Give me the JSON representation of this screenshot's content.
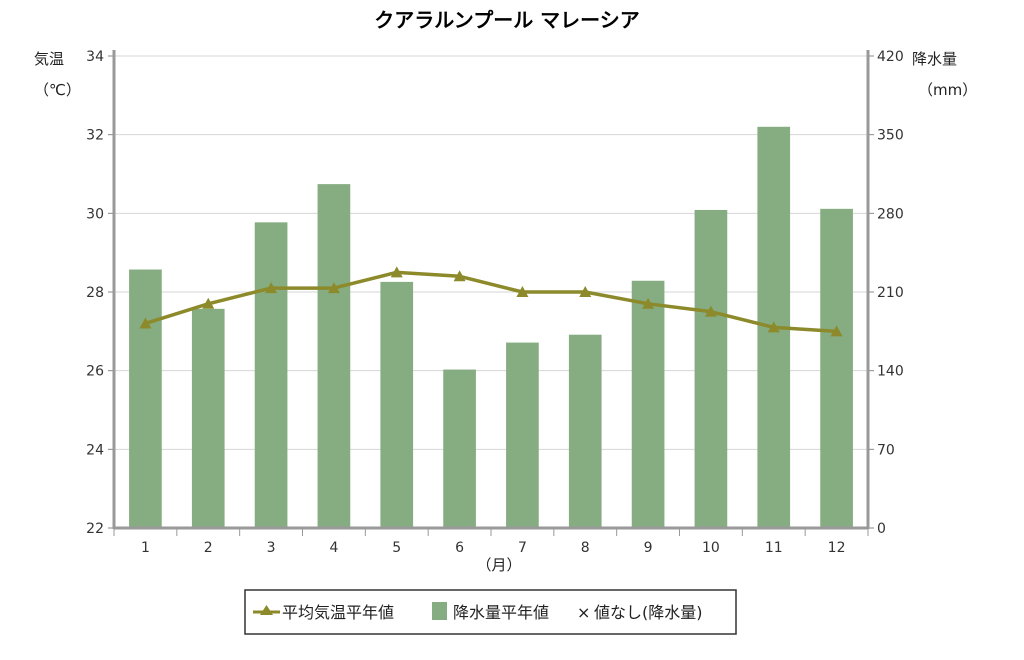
{
  "chart_data": {
    "type": "bar+line",
    "title": "クアラルンプール マレーシア",
    "xlabel": "（月）",
    "categories": [
      "1",
      "2",
      "3",
      "4",
      "5",
      "6",
      "7",
      "8",
      "9",
      "10",
      "11",
      "12"
    ],
    "y_left": {
      "label_line1": "気温",
      "label_line2": "（℃）",
      "ylim": [
        22,
        34
      ],
      "ticks": [
        "22",
        "24",
        "26",
        "28",
        "30",
        "32",
        "34"
      ]
    },
    "y_right": {
      "label_line1": "降水量",
      "label_line2": "（mm）",
      "ylim": [
        0,
        420
      ],
      "ticks": [
        "0",
        "70",
        "140",
        "210",
        "280",
        "350",
        "420"
      ]
    },
    "series": [
      {
        "name": "平均気温平年値",
        "kind": "line",
        "axis": "left",
        "color": "#8c8a2a",
        "values": [
          27.2,
          27.7,
          28.1,
          28.1,
          28.5,
          28.4,
          28.0,
          28.0,
          27.7,
          27.5,
          27.1,
          27.0
        ]
      },
      {
        "name": "降水量平年値",
        "kind": "bar",
        "axis": "right",
        "color": "#86ad82",
        "values": [
          230,
          195,
          272,
          306,
          219,
          141,
          165,
          172,
          220,
          283,
          357,
          284
        ]
      }
    ],
    "legend": {
      "position": "bottom",
      "items": [
        "平均気温平年値",
        "降水量平年値",
        "値なし(降水量)"
      ],
      "none_marker": "×"
    },
    "grid": true
  }
}
